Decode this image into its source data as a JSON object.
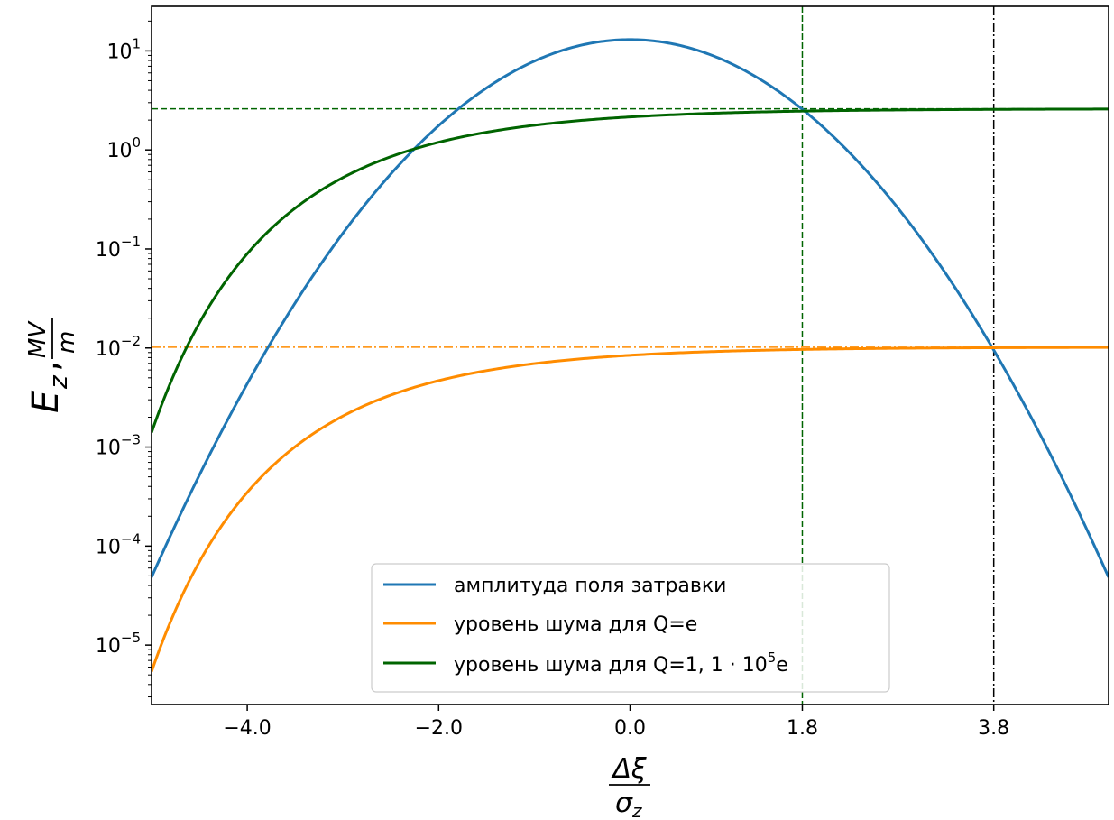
{
  "chart_data": {
    "type": "line",
    "y_scale": "log",
    "xlim": [
      -5,
      5
    ],
    "ylim_log10": [
      -5.6,
      1.45
    ],
    "x_ticks": [
      {
        "value": -4.0,
        "label": "−4.0"
      },
      {
        "value": -2.0,
        "label": "−2.0"
      },
      {
        "value": 0.0,
        "label": "0.0"
      },
      {
        "value": 1.8,
        "label": "1.8"
      },
      {
        "value": 3.8,
        "label": "3.8"
      }
    ],
    "y_ticks": [
      {
        "exp": 1,
        "mantissa": "10",
        "sup": "1"
      },
      {
        "exp": 0,
        "mantissa": "10",
        "sup": "0"
      },
      {
        "exp": -1,
        "mantissa": "10",
        "sup": "−1"
      },
      {
        "exp": -2,
        "mantissa": "10",
        "sup": "−2"
      },
      {
        "exp": -3,
        "mantissa": "10",
        "sup": "−3"
      },
      {
        "exp": -4,
        "mantissa": "10",
        "sup": "−4"
      },
      {
        "exp": -5,
        "mantissa": "10",
        "sup": "−5"
      }
    ],
    "xlabel": {
      "numerator": "Δξ",
      "denominator": "σ",
      "denominator_sub": "z"
    },
    "ylabel": {
      "main": "E",
      "sub": "z",
      "sep": ",",
      "frac_num": "MV",
      "frac_den": "m"
    },
    "legend_location": "lower center",
    "series": [
      {
        "name": "амплитуда поля затравки",
        "color": "#1f77b4",
        "model": "gaussian",
        "peak": 13,
        "sigma": 1.0
      },
      {
        "name": "уровень шума для Q=e",
        "color": "#ff8c00",
        "model": "saturating",
        "plateau": 0.0102,
        "value_at_minus5": 5.4e-06
      },
      {
        "name_prefix": "уровень шума для Q=1, 1 · 10",
        "name_sup": "5",
        "name_suffix": "e",
        "color": "#006400",
        "model": "saturating",
        "plateau": 2.6,
        "value_at_minus5": 0.0014
      }
    ],
    "reference_lines": [
      {
        "orientation": "horizontal",
        "y": 2.6,
        "style": "dashed",
        "color": "#006400"
      },
      {
        "orientation": "horizontal",
        "y": 0.0102,
        "style": "dashdot",
        "color": "#ff8c00"
      },
      {
        "orientation": "vertical",
        "x": 1.8,
        "style": "dashed",
        "color": "#006400"
      },
      {
        "orientation": "vertical",
        "x": 3.8,
        "style": "dashdot",
        "color": "#000000"
      }
    ]
  }
}
